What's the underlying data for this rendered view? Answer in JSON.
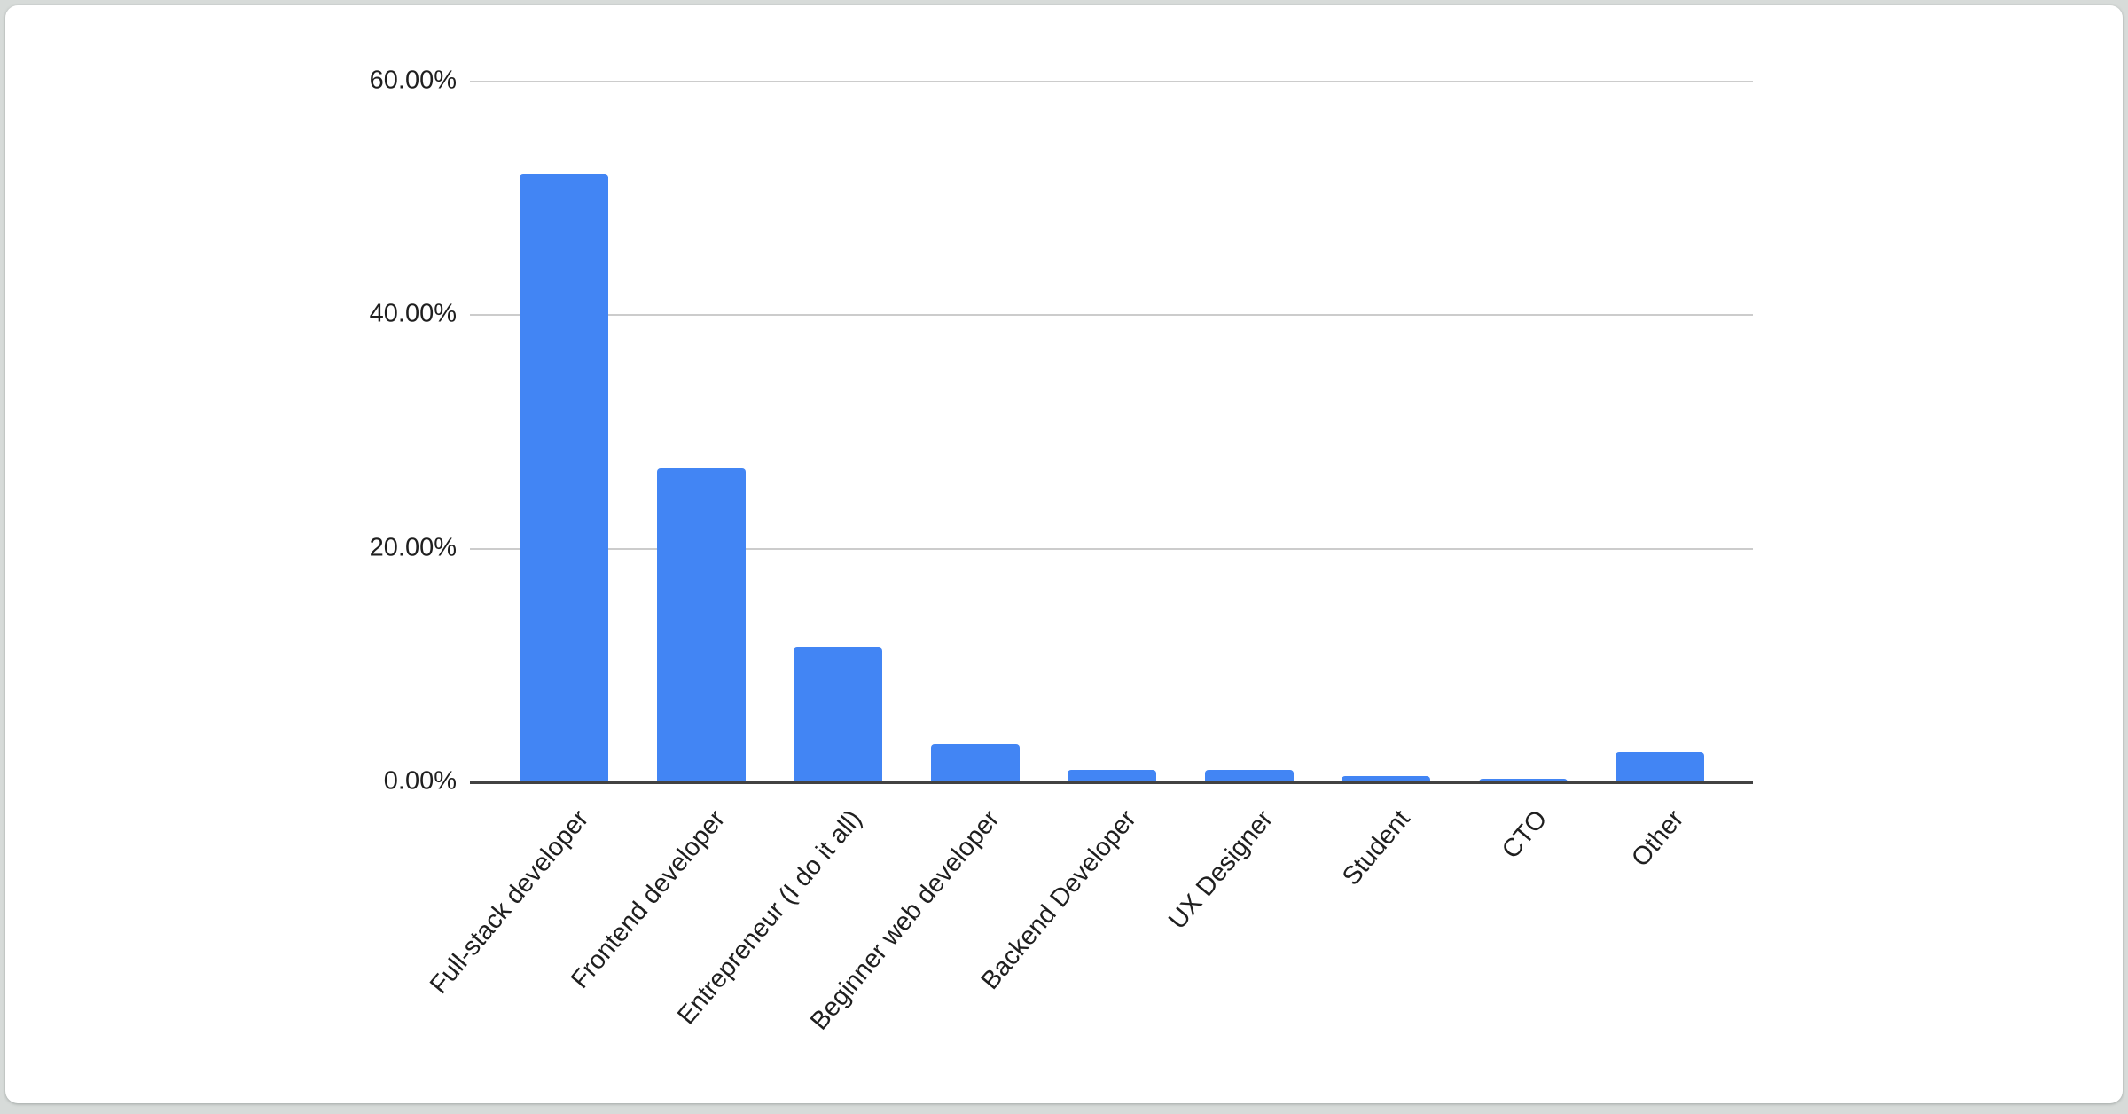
{
  "page": {
    "background_color": "#d7dbd9",
    "card_background_color": "#ffffff"
  },
  "chart_data": {
    "type": "bar",
    "title": "",
    "legend": "none",
    "grid": "horizontal",
    "categories": [
      "Full-stack developer",
      "Frontend developer",
      "Entrepreneur (I do it all)",
      "Beginner web developer",
      "Backend Developer",
      "UX Designer",
      "Student",
      "CTO",
      "Other"
    ],
    "values": [
      52.1,
      26.9,
      11.5,
      3.3,
      1.1,
      1.1,
      0.5,
      0.3,
      2.6
    ],
    "unit": "%",
    "xlabel": "",
    "ylabel": "",
    "ylim": [
      0,
      60
    ],
    "y_ticks": [
      {
        "value": 0,
        "label": "0.00%"
      },
      {
        "value": 20,
        "label": "20.00%"
      },
      {
        "value": 40,
        "label": "40.00%"
      },
      {
        "value": 60,
        "label": "60.00%"
      }
    ],
    "x_label_rotation_deg": -50,
    "bar_color": "#4285f4",
    "gridline_color": "#cccccc",
    "axis_line_color": "#424242",
    "label_color": "#1f1f1f"
  }
}
